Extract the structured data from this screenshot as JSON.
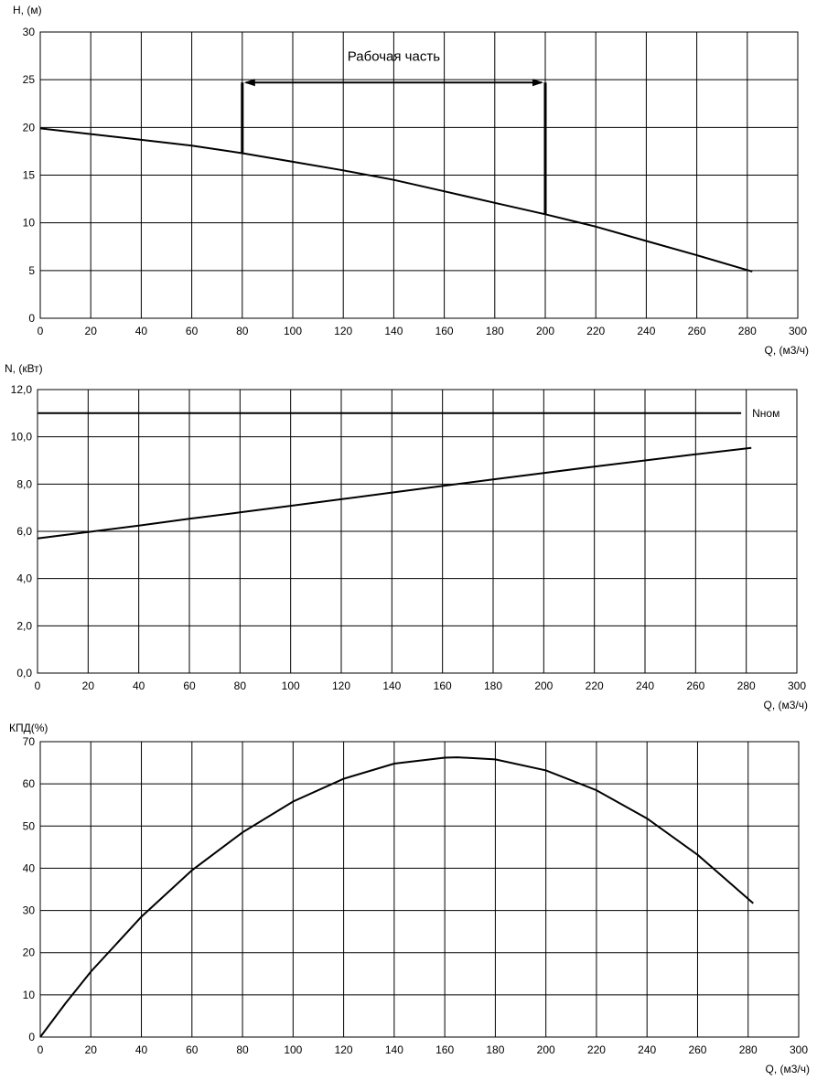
{
  "chart_data": [
    {
      "type": "line",
      "ylabel": "H, (м)",
      "xlabel": "Q, (м3/ч)",
      "xlim": [
        0,
        300
      ],
      "ylim": [
        0,
        30
      ],
      "xticks": [
        0,
        20,
        40,
        60,
        80,
        100,
        120,
        140,
        160,
        180,
        200,
        220,
        240,
        260,
        280,
        300
      ],
      "yticks": [
        0,
        5,
        10,
        15,
        20,
        25,
        30
      ],
      "ytick_labels": [
        "0",
        "5",
        "10",
        "15",
        "20",
        "25",
        "30"
      ],
      "grid": true,
      "series": [
        {
          "x": [
            0,
            20,
            40,
            60,
            80,
            100,
            120,
            140,
            160,
            180,
            200,
            220,
            240,
            260,
            282
          ],
          "values": [
            19.9,
            19.3,
            18.7,
            18.1,
            17.3,
            16.4,
            15.5,
            14.5,
            13.3,
            12.1,
            10.9,
            9.6,
            8.1,
            6.6,
            4.9
          ]
        }
      ],
      "annotations": [
        {
          "text": "Рабочая часть",
          "x_from": 80,
          "x_to": 200,
          "y": 24.7
        }
      ]
    },
    {
      "type": "line",
      "ylabel": "N, (кВт)",
      "xlabel": "Q, (м3/ч)",
      "xlim": [
        0,
        300
      ],
      "ylim": [
        0,
        12
      ],
      "xticks": [
        0,
        20,
        40,
        60,
        80,
        100,
        120,
        140,
        160,
        180,
        200,
        220,
        240,
        260,
        280,
        300
      ],
      "yticks": [
        0,
        2,
        4,
        6,
        8,
        10,
        12
      ],
      "ytick_labels": [
        "0,0",
        "2,0",
        "4,0",
        "6,0",
        "8,0",
        "10,0",
        "12,0"
      ],
      "grid": true,
      "series": [
        {
          "x": [
            0,
            20,
            40,
            60,
            80,
            100,
            120,
            140,
            160,
            180,
            200,
            220,
            240,
            260,
            282
          ],
          "values": [
            5.7,
            5.97,
            6.24,
            6.53,
            6.8,
            7.08,
            7.36,
            7.64,
            7.92,
            8.2,
            8.47,
            8.74,
            9.0,
            9.26,
            9.53
          ]
        },
        {
          "name": "Nном",
          "x": [
            0,
            278
          ],
          "values": [
            11.0,
            11.0
          ]
        }
      ]
    },
    {
      "type": "line",
      "ylabel": "КПД(%)",
      "xlabel": "Q, (м3/ч)",
      "xlim": [
        0,
        300
      ],
      "ylim": [
        0,
        70
      ],
      "xticks": [
        0,
        20,
        40,
        60,
        80,
        100,
        120,
        140,
        160,
        180,
        200,
        220,
        240,
        260,
        280,
        300
      ],
      "yticks": [
        0,
        10,
        20,
        30,
        40,
        50,
        60,
        70
      ],
      "ytick_labels": [
        "0",
        "10",
        "20",
        "30",
        "40",
        "50",
        "60",
        "70"
      ],
      "grid": true,
      "series": [
        {
          "x": [
            0,
            10,
            20,
            40,
            60,
            80,
            100,
            120,
            140,
            160,
            165,
            180,
            200,
            220,
            240,
            260,
            270,
            282
          ],
          "values": [
            0,
            8,
            15.5,
            28.5,
            39.5,
            48.5,
            55.8,
            61.2,
            64.8,
            66.2,
            66.3,
            65.8,
            63.2,
            58.5,
            51.8,
            43.2,
            38,
            31.7
          ]
        }
      ]
    }
  ]
}
